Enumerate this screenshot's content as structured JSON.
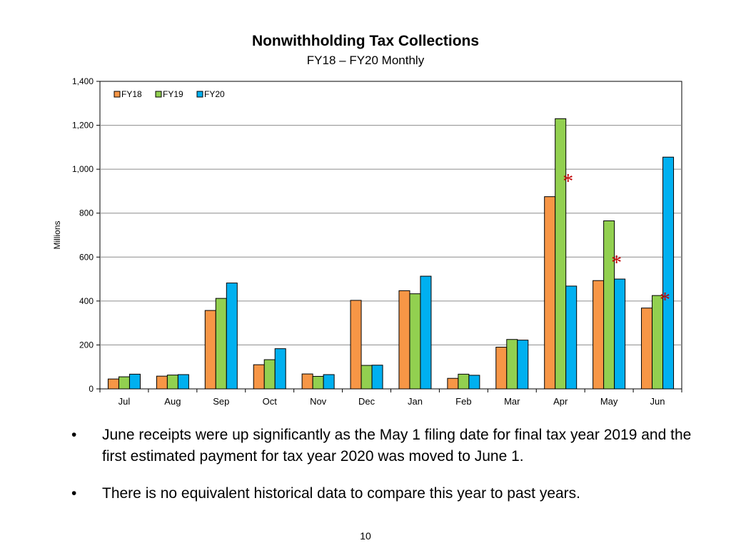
{
  "slide": {
    "title": "Nonwithholding Tax Collections",
    "subtitle": "FY18 – FY20 Monthly",
    "bullets": [
      {
        "marker": "•",
        "text": "June receipts were up significantly as the May 1 filing date for final tax year 2019 and the first estimated payment for tax year 2020 was moved to June 1."
      },
      {
        "marker": "•",
        "text": "There is no equivalent historical data to compare this year to past years."
      }
    ],
    "page_number": "10"
  },
  "chart_data": {
    "type": "bar",
    "ylabel": "Millions",
    "ylim": [
      0,
      1400
    ],
    "yticks": [
      0,
      200,
      400,
      600,
      800,
      1000,
      1200,
      1400
    ],
    "ytick_labels": [
      "0",
      "200",
      "400",
      "600",
      "800",
      "1,000",
      "1,200",
      "1,400"
    ],
    "grid": true,
    "legend_position": "top-left",
    "categories": [
      "Jul",
      "Aug",
      "Sep",
      "Oct",
      "Nov",
      "Dec",
      "Jan",
      "Feb",
      "Mar",
      "Apr",
      "May",
      "Jun"
    ],
    "series": [
      {
        "name": "FY18",
        "color": "#F79646",
        "values": [
          45,
          58,
          357,
          110,
          68,
          403,
          447,
          48,
          190,
          875,
          493,
          368
        ]
      },
      {
        "name": "FY19",
        "color": "#92D050",
        "values": [
          55,
          63,
          412,
          133,
          57,
          107,
          433,
          67,
          225,
          1230,
          765,
          425
        ]
      },
      {
        "name": "FY20",
        "color": "#00B0F0",
        "values": [
          67,
          65,
          482,
          183,
          65,
          108,
          513,
          62,
          222,
          468,
          500,
          1055
        ]
      }
    ],
    "annotations": [
      {
        "text": "*",
        "category": "Apr",
        "y": 960,
        "color": "#C00000"
      },
      {
        "text": "*",
        "category": "May",
        "y": 590,
        "color": "#C00000"
      },
      {
        "text": "*",
        "category": "Jun",
        "y": 420,
        "color": "#C00000"
      }
    ]
  }
}
